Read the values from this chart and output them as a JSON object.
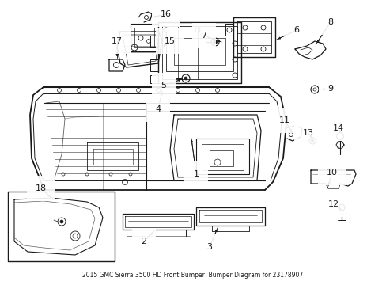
{
  "bg_color": "#ffffff",
  "line_color": "#1a1a1a",
  "figsize": [
    4.89,
    3.6
  ],
  "dpi": 100,
  "title": "2015 GMC Sierra 3500 HD Front Bumper\nBumper Diagram for 23178907"
}
